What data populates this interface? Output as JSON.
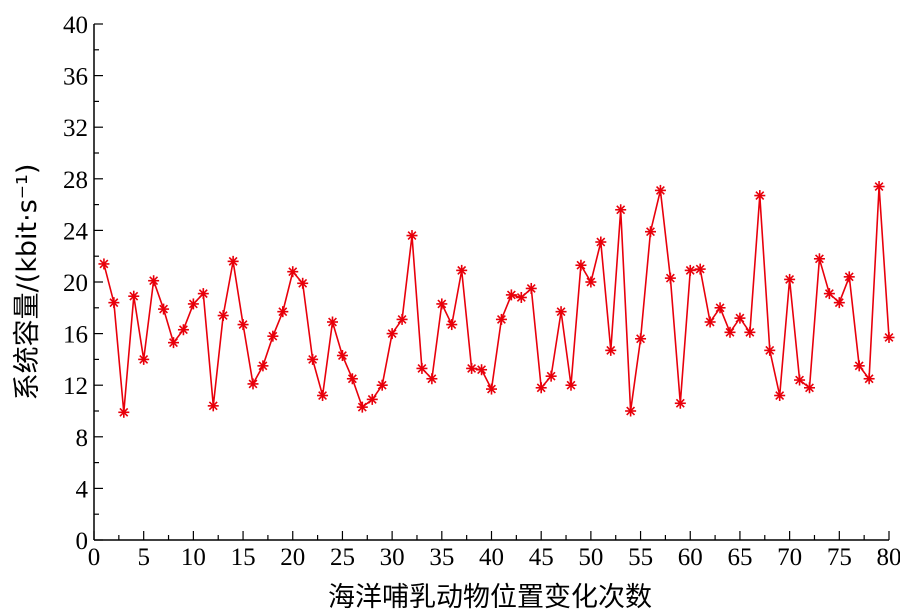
{
  "chart_data": {
    "type": "line",
    "title": "",
    "xlabel": "海洋哺乳动物位置变化次数",
    "ylabel": "系统容量/(kbit·s⁻¹)",
    "xlim": [
      0,
      80
    ],
    "ylim": [
      0,
      40
    ],
    "xticks": [
      0,
      5,
      10,
      15,
      20,
      25,
      30,
      35,
      40,
      45,
      50,
      55,
      60,
      65,
      70,
      75,
      80
    ],
    "yticks": [
      0,
      4,
      8,
      12,
      16,
      20,
      24,
      28,
      32,
      36,
      40
    ],
    "grid": false,
    "legend": "none",
    "series": [
      {
        "color": "#e8000b",
        "marker": "asterisk",
        "x": [
          1,
          2,
          3,
          4,
          5,
          6,
          7,
          8,
          9,
          10,
          11,
          12,
          13,
          14,
          15,
          16,
          17,
          18,
          19,
          20,
          21,
          22,
          23,
          24,
          25,
          26,
          27,
          28,
          29,
          30,
          31,
          32,
          33,
          34,
          35,
          36,
          37,
          38,
          39,
          40,
          41,
          42,
          43,
          44,
          45,
          46,
          47,
          48,
          49,
          50,
          51,
          52,
          53,
          54,
          55,
          56,
          57,
          58,
          59,
          60,
          61,
          62,
          63,
          64,
          65,
          66,
          67,
          68,
          69,
          70,
          71,
          72,
          73,
          74,
          75,
          76,
          77,
          78,
          79,
          80
        ],
        "values": [
          21.4,
          18.4,
          9.9,
          18.9,
          14.0,
          20.1,
          17.9,
          15.3,
          16.3,
          18.3,
          19.1,
          10.4,
          17.4,
          21.6,
          16.7,
          12.1,
          13.5,
          15.8,
          17.7,
          20.8,
          19.9,
          14.0,
          11.2,
          16.9,
          14.3,
          12.5,
          10.3,
          10.9,
          12.0,
          16.0,
          17.1,
          23.6,
          13.3,
          12.5,
          18.3,
          16.7,
          20.9,
          13.3,
          13.2,
          11.7,
          17.1,
          19.0,
          18.8,
          19.5,
          11.8,
          12.7,
          17.7,
          12.0,
          21.3,
          20.0,
          23.1,
          14.7,
          25.6,
          10.0,
          15.6,
          23.9,
          27.1,
          20.3,
          10.6,
          20.9,
          21.0,
          16.9,
          18.0,
          16.1,
          17.2,
          16.1,
          26.7,
          14.7,
          11.2,
          20.2,
          12.4,
          11.8,
          21.8,
          19.1,
          18.4,
          20.4,
          13.5,
          12.5,
          27.4,
          15.7
        ]
      }
    ]
  }
}
